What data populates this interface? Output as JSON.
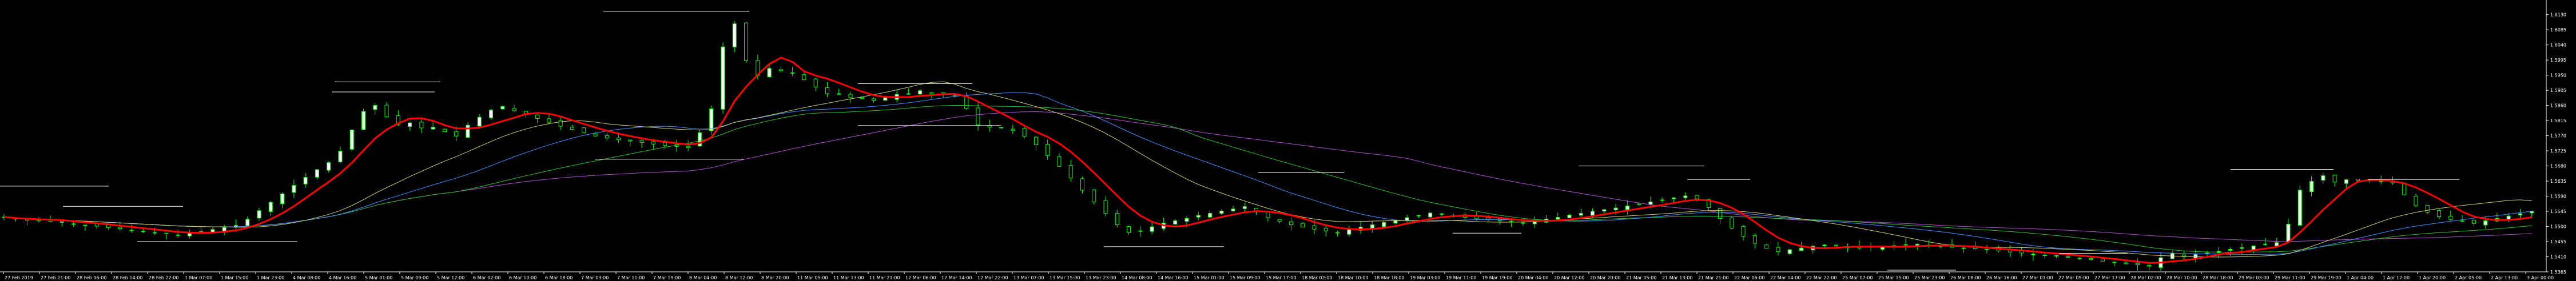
{
  "chart_data": {
    "type": "candlestick",
    "x_ticks": [
      "27 Feb 2019",
      "27 Feb 21:00",
      "28 Feb 06:00",
      "28 Feb 14:00",
      "28 Feb 22:00",
      "1 Mar 07:00",
      "1 Mar 15:00",
      "1 Mar 23:00",
      "4 Mar 08:00",
      "4 Mar 16:00",
      "5 Mar 01:00",
      "5 Mar 09:00",
      "5 Mar 17:00",
      "6 Mar 02:00",
      "6 Mar 10:00",
      "6 Mar 18:00",
      "7 Mar 03:00",
      "7 Mar 11:00",
      "7 Mar 19:00",
      "8 Mar 04:00",
      "8 Mar 12:00",
      "8 Mar 20:00",
      "11 Mar 05:00",
      "11 Mar 13:00",
      "11 Mar 21:00",
      "12 Mar 06:00",
      "12 Mar 14:00",
      "12 Mar 22:00",
      "13 Mar 07:00",
      "13 Mar 15:00",
      "13 Mar 23:00",
      "14 Mar 08:00",
      "14 Mar 16:00",
      "15 Mar 01:00",
      "15 Mar 09:00",
      "15 Mar 17:00",
      "18 Mar 02:00",
      "18 Mar 10:00",
      "18 Mar 18:00",
      "19 Mar 03:00",
      "19 Mar 11:00",
      "19 Mar 19:00",
      "20 Mar 04:00",
      "20 Mar 12:00",
      "20 Mar 20:00",
      "21 Mar 05:00",
      "21 Mar 13:00",
      "21 Mar 21:00",
      "22 Mar 06:00",
      "22 Mar 14:00",
      "22 Mar 22:00",
      "25 Mar 07:00",
      "25 Mar 15:00",
      "25 Mar 23:00",
      "26 Mar 08:00",
      "26 Mar 16:00",
      "27 Mar 01:00",
      "27 Mar 09:00",
      "27 Mar 17:00",
      "28 Mar 02:00",
      "28 Mar 10:00",
      "28 Mar 18:00",
      "29 Mar 03:00",
      "29 Mar 11:00",
      "29 Mar 19:00",
      "1 Apr 04:00",
      "1 Apr 12:00",
      "1 Apr 20:00",
      "2 Apr 05:00",
      "2 Apr 13:00",
      "3 Apr 00:00"
    ],
    "y_ticks": [
      "1.6130",
      "1.6085",
      "1.6040",
      "1.5995",
      "1.5950",
      "1.5905",
      "1.5860",
      "1.5815",
      "1.5770",
      "1.5725",
      "1.5680",
      "1.5635",
      "1.5590",
      "1.5545",
      "1.5500",
      "1.5455",
      "1.5410",
      "1.5365"
    ],
    "y_range": [
      1.5365,
      1.616
    ],
    "close": [
      1.5528,
      1.5522,
      1.5519,
      1.5517,
      1.5515,
      1.5512,
      1.5508,
      1.5504,
      1.5501,
      1.5497,
      1.5493,
      1.5489,
      1.5486,
      1.5482,
      1.5478,
      1.5475,
      1.548,
      1.5485,
      1.5491,
      1.5497,
      1.5503,
      1.5521,
      1.5547,
      1.5572,
      1.5597,
      1.5622,
      1.5646,
      1.5669,
      1.569,
      1.5724,
      1.5787,
      1.5842,
      1.586,
      1.5826,
      1.5803,
      1.5808,
      1.5793,
      1.5795,
      1.5782,
      1.5769,
      1.5801,
      1.5825,
      1.5846,
      1.5857,
      1.5844,
      1.5833,
      1.5821,
      1.581,
      1.5798,
      1.5789,
      1.5779,
      1.5769,
      1.5763,
      1.5758,
      1.5754,
      1.575,
      1.5745,
      1.5741,
      1.5738,
      1.5735,
      1.5779,
      1.585,
      1.6034,
      1.6103,
      1.5994,
      1.5949,
      1.597,
      1.5963,
      1.5957,
      1.5937,
      1.5915,
      1.5895,
      1.5895,
      1.5883,
      1.588,
      1.5875,
      1.5883,
      1.5893,
      1.5895,
      1.5904,
      1.5894,
      1.5892,
      1.5887,
      1.5851,
      1.5802,
      1.5796,
      1.5794,
      1.5786,
      1.5768,
      1.5743,
      1.5711,
      1.5679,
      1.5644,
      1.5608,
      1.5573,
      1.5539,
      1.5505,
      1.5482,
      1.5486,
      1.5499,
      1.551,
      1.5517,
      1.5524,
      1.5533,
      1.5539,
      1.5546,
      1.5552,
      1.5559,
      1.5543,
      1.5526,
      1.5515,
      1.5505,
      1.5498,
      1.5492,
      1.5487,
      1.5482,
      1.5491,
      1.5498,
      1.5505,
      1.5512,
      1.5519,
      1.5526,
      1.5533,
      1.554,
      1.5536,
      1.5531,
      1.5527,
      1.5523,
      1.552,
      1.5517,
      1.5514,
      1.5511,
      1.5516,
      1.5522,
      1.5527,
      1.5534,
      1.5539,
      1.5545,
      1.555,
      1.5555,
      1.5561,
      1.5567,
      1.5573,
      1.5579,
      1.5585,
      1.5591,
      1.5582,
      1.5556,
      1.5524,
      1.5495,
      1.5471,
      1.545,
      1.5435,
      1.5425,
      1.5431,
      1.5436,
      1.5441,
      1.5445,
      1.5442,
      1.5439,
      1.5436,
      1.5438,
      1.544,
      1.5443,
      1.5445,
      1.5447,
      1.5443,
      1.5441,
      1.5438,
      1.5436,
      1.5434,
      1.543,
      1.5427,
      1.5424,
      1.5421,
      1.5418,
      1.5415,
      1.5413,
      1.541,
      1.5405,
      1.5401,
      1.5397,
      1.5394,
      1.5389,
      1.5386,
      1.5382,
      1.5407,
      1.542,
      1.541,
      1.5417,
      1.5421,
      1.5426,
      1.5432,
      1.5437,
      1.5442,
      1.5447,
      1.5452,
      1.5507,
      1.5608,
      1.5634,
      1.5651,
      1.5632,
      1.5639,
      1.5637,
      1.5636,
      1.5635,
      1.563,
      1.5594,
      1.5562,
      1.5542,
      1.5529,
      1.5521,
      1.5515,
      1.5509,
      1.5517,
      1.5524,
      1.5531,
      1.5538,
      1.5545
    ]
  }
}
